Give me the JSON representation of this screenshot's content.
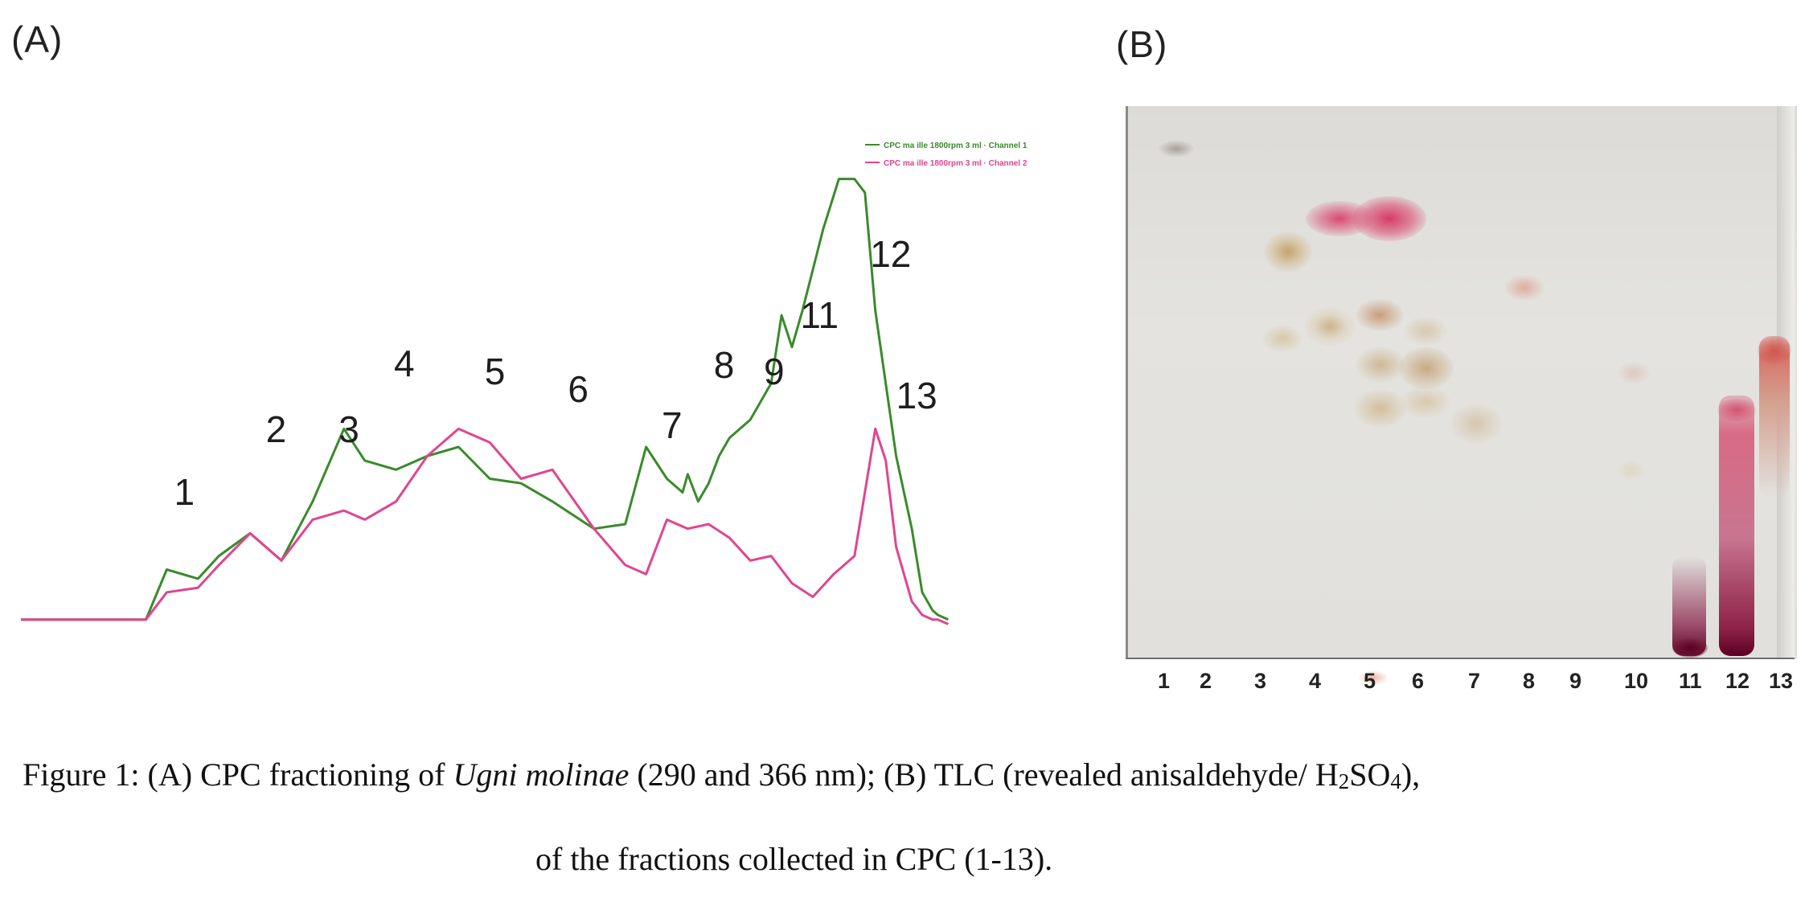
{
  "figure": {
    "panel_a_label": "(A)",
    "panel_b_label": "(B)"
  },
  "chart_data": {
    "type": "line",
    "legend": {
      "placement": "top-right",
      "entries": [
        "CPC ma ille 1800rpm 3 ml · Channel 1",
        "CPC ma ille 1800rpm 3 ml · Channel 2"
      ]
    },
    "series": [
      {
        "color": "#3a8a2c",
        "x": [
          0,
          6,
          12,
          14,
          17,
          19,
          22,
          25,
          28,
          31,
          33,
          36,
          39,
          42,
          45,
          48,
          51,
          55,
          58,
          60,
          62,
          63.5,
          64,
          65,
          66,
          67,
          68,
          70,
          72,
          73,
          74,
          75,
          77,
          78.5,
          80,
          81,
          82,
          84,
          85.5,
          86.5,
          87.5,
          88,
          89
        ],
        "y": [
          2,
          2,
          2,
          13,
          11,
          16,
          21,
          15,
          28,
          44,
          37,
          35,
          38,
          40,
          33,
          32,
          28,
          22,
          23,
          40,
          33,
          30,
          34,
          28,
          32,
          38,
          42,
          46,
          54,
          69,
          62,
          70,
          88,
          99,
          99,
          96,
          70,
          38,
          22,
          8,
          4,
          3,
          2
        ]
      },
      {
        "color": "#e0458f",
        "x": [
          0,
          6,
          12,
          14,
          17,
          19,
          22,
          25,
          28,
          31,
          33,
          36,
          39,
          42,
          45,
          48,
          51,
          55,
          58,
          60,
          62,
          64,
          66,
          68,
          70,
          72,
          74,
          76,
          78,
          80,
          82,
          83,
          84,
          85.5,
          86.5,
          87.5,
          88,
          89
        ],
        "y": [
          2,
          2,
          2,
          8,
          9,
          14,
          21,
          15,
          24,
          26,
          24,
          28,
          38,
          44,
          41,
          33,
          35,
          22,
          14,
          12,
          24,
          22,
          23,
          20,
          15,
          16,
          10,
          7,
          12,
          16,
          44,
          37,
          18,
          6,
          3,
          2,
          2,
          1
        ]
      }
    ],
    "peak_labels": [
      "1",
      "2",
      "3",
      "4",
      "5",
      "6",
      "7",
      "8",
      "9",
      "11",
      "12",
      "13"
    ]
  },
  "tlc": {
    "lanes": [
      "1",
      "2",
      "3",
      "4",
      "5",
      "6",
      "7",
      "8",
      "9",
      "10",
      "11",
      "12",
      "13"
    ]
  },
  "caption": {
    "line1_prefix": "Figure 1: (A) CPC fractioning of ",
    "line1_species": "Ugni molinae",
    "line1_mid": " (290 and 366 nm); (B) TLC (revealed anisaldehyde/ H",
    "sub_2": "2",
    "so": "SO",
    "sub_4": "4",
    "line1_end": "),",
    "line2": "of the fractions collected in CPC (1-13)."
  }
}
